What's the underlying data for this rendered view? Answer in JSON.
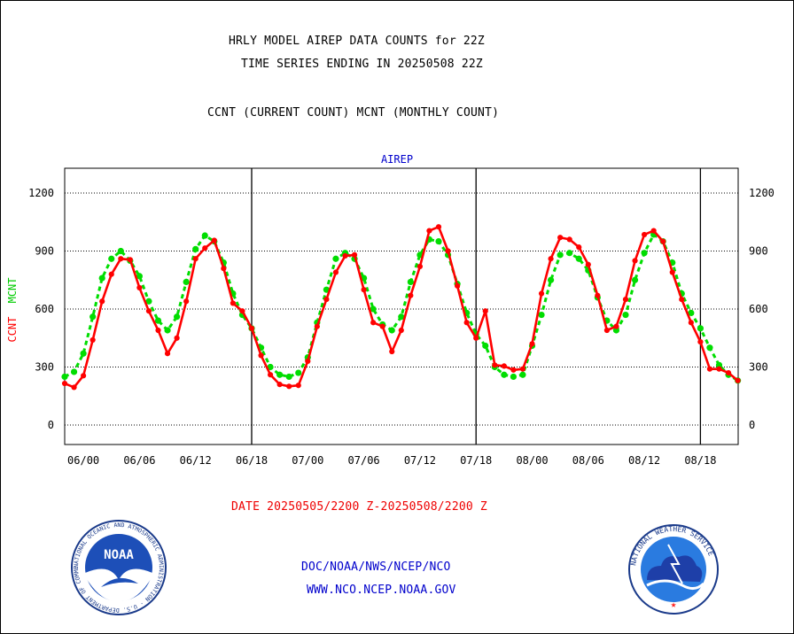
{
  "header": {
    "title_line1": "HRLY MODEL AIREP DATA COUNTS for 22Z",
    "title_line2": "TIME SERIES ENDING IN 20250508 22Z",
    "legend_line": "CCNT (CURRENT COUNT) MCNT (MONTHLY COUNT)"
  },
  "footer": {
    "date_range": "DATE 20250505/2200 Z-20250508/2200 Z",
    "org_line": "DOC/NOAA/NWS/NCEP/NCO",
    "url_line": "WWW.NCO.NCEP.NOAA.GOV"
  },
  "logos": {
    "noaa": {
      "label": "NOAA",
      "ring_text": "NATIONAL OCEANIC AND ATMOSPHERIC ADMINISTRATION · U.S. DEPARTMENT OF COMMERCE"
    },
    "nws": {
      "ring_text": "NATIONAL WEATHER SERVICE"
    }
  },
  "colors": {
    "ccnt": "#ff0000",
    "mcnt": "#00dd00",
    "text_blue": "#0000cc",
    "date_red": "#ee0000"
  },
  "chart_data": {
    "type": "line",
    "title": "AIREP",
    "ylabel_parts": [
      "CCNT",
      "MCNT"
    ],
    "ylim": [
      -80,
      1330
    ],
    "yticks": [
      0,
      300,
      600,
      900,
      1200
    ],
    "x": [
      "05/22",
      "05/23",
      "06/00",
      "06/01",
      "06/02",
      "06/03",
      "06/04",
      "06/05",
      "06/06",
      "06/07",
      "06/08",
      "06/09",
      "06/10",
      "06/11",
      "06/12",
      "06/13",
      "06/14",
      "06/15",
      "06/16",
      "06/17",
      "06/18",
      "06/19",
      "06/20",
      "06/21",
      "06/22",
      "06/23",
      "07/00",
      "07/01",
      "07/02",
      "07/03",
      "07/04",
      "07/05",
      "07/06",
      "07/07",
      "07/08",
      "07/09",
      "07/10",
      "07/11",
      "07/12",
      "07/13",
      "07/14",
      "07/15",
      "07/16",
      "07/17",
      "07/18",
      "07/19",
      "07/20",
      "07/21",
      "07/22",
      "07/23",
      "08/00",
      "08/01",
      "08/02",
      "08/03",
      "08/04",
      "08/05",
      "08/06",
      "08/07",
      "08/08",
      "08/09",
      "08/10",
      "08/11",
      "08/12",
      "08/13",
      "08/14",
      "08/15",
      "08/16",
      "08/17",
      "08/18",
      "08/19",
      "08/20",
      "08/21",
      "08/22"
    ],
    "xtick_labels": [
      "06/00",
      "06/06",
      "06/12",
      "06/18",
      "07/00",
      "07/06",
      "07/12",
      "07/18",
      "08/00",
      "08/06",
      "08/12",
      "08/18"
    ],
    "day_boundaries": [
      "06/18",
      "07/18",
      "08/18"
    ],
    "grid": "dotted horizontal",
    "series": [
      {
        "name": "CCNT",
        "color": "#ff0000",
        "style": "solid",
        "values": [
          215,
          195,
          255,
          440,
          640,
          780,
          860,
          855,
          710,
          590,
          490,
          370,
          450,
          640,
          860,
          915,
          955,
          810,
          630,
          590,
          500,
          360,
          260,
          210,
          200,
          205,
          330,
          510,
          650,
          790,
          875,
          880,
          700,
          530,
          510,
          380,
          490,
          670,
          820,
          1005,
          1025,
          900,
          720,
          530,
          450,
          590,
          310,
          305,
          285,
          290,
          420,
          680,
          860,
          970,
          960,
          920,
          830,
          670,
          490,
          510,
          650,
          850,
          985,
          1005,
          950,
          790,
          650,
          530,
          430,
          290,
          290,
          270,
          230
        ]
      },
      {
        "name": "MCNT",
        "color": "#00dd00",
        "style": "dotted",
        "values": [
          250,
          275,
          370,
          560,
          760,
          860,
          900,
          850,
          770,
          640,
          540,
          490,
          560,
          740,
          910,
          980,
          950,
          840,
          680,
          570,
          500,
          400,
          300,
          260,
          250,
          270,
          350,
          530,
          700,
          860,
          890,
          860,
          760,
          600,
          520,
          490,
          560,
          740,
          880,
          960,
          950,
          880,
          730,
          580,
          470,
          410,
          300,
          260,
          250,
          260,
          410,
          570,
          750,
          880,
          890,
          860,
          800,
          660,
          540,
          490,
          570,
          750,
          890,
          985,
          950,
          840,
          680,
          580,
          500,
          400,
          310,
          260,
          230
        ]
      }
    ]
  }
}
